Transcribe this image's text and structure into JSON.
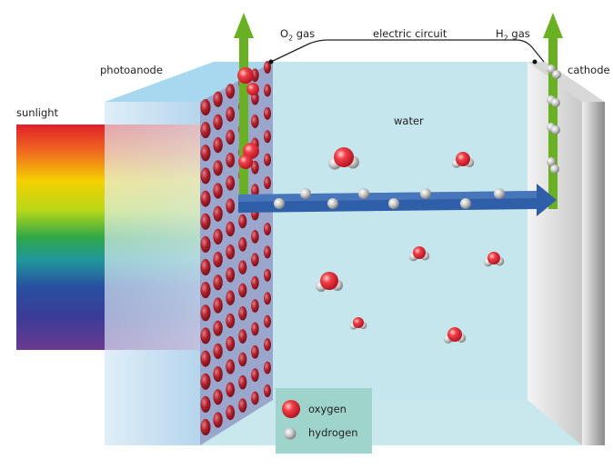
{
  "labels": {
    "photoanode": "photoanode",
    "sunlight": "sunlight",
    "water": "water",
    "cathode": "cathode",
    "o2_gas": {
      "base": "O",
      "sub": "2",
      "rest": " gas"
    },
    "h2_gas": {
      "base": "H",
      "sub": "2",
      "rest": " gas"
    },
    "electric_circuit": "electric circuit"
  },
  "legend": {
    "items": [
      {
        "label": "oxygen",
        "color": "#e0303a"
      },
      {
        "label": "hydrogen",
        "color": "#b8b8b8"
      }
    ]
  },
  "colors": {
    "water": "#c8e8ee",
    "legend_bg": "#9fd4cc",
    "gas_arrow": "#6ab023",
    "electron_arrow": "#2f5fa8",
    "anode_dots": "#b0202c"
  }
}
